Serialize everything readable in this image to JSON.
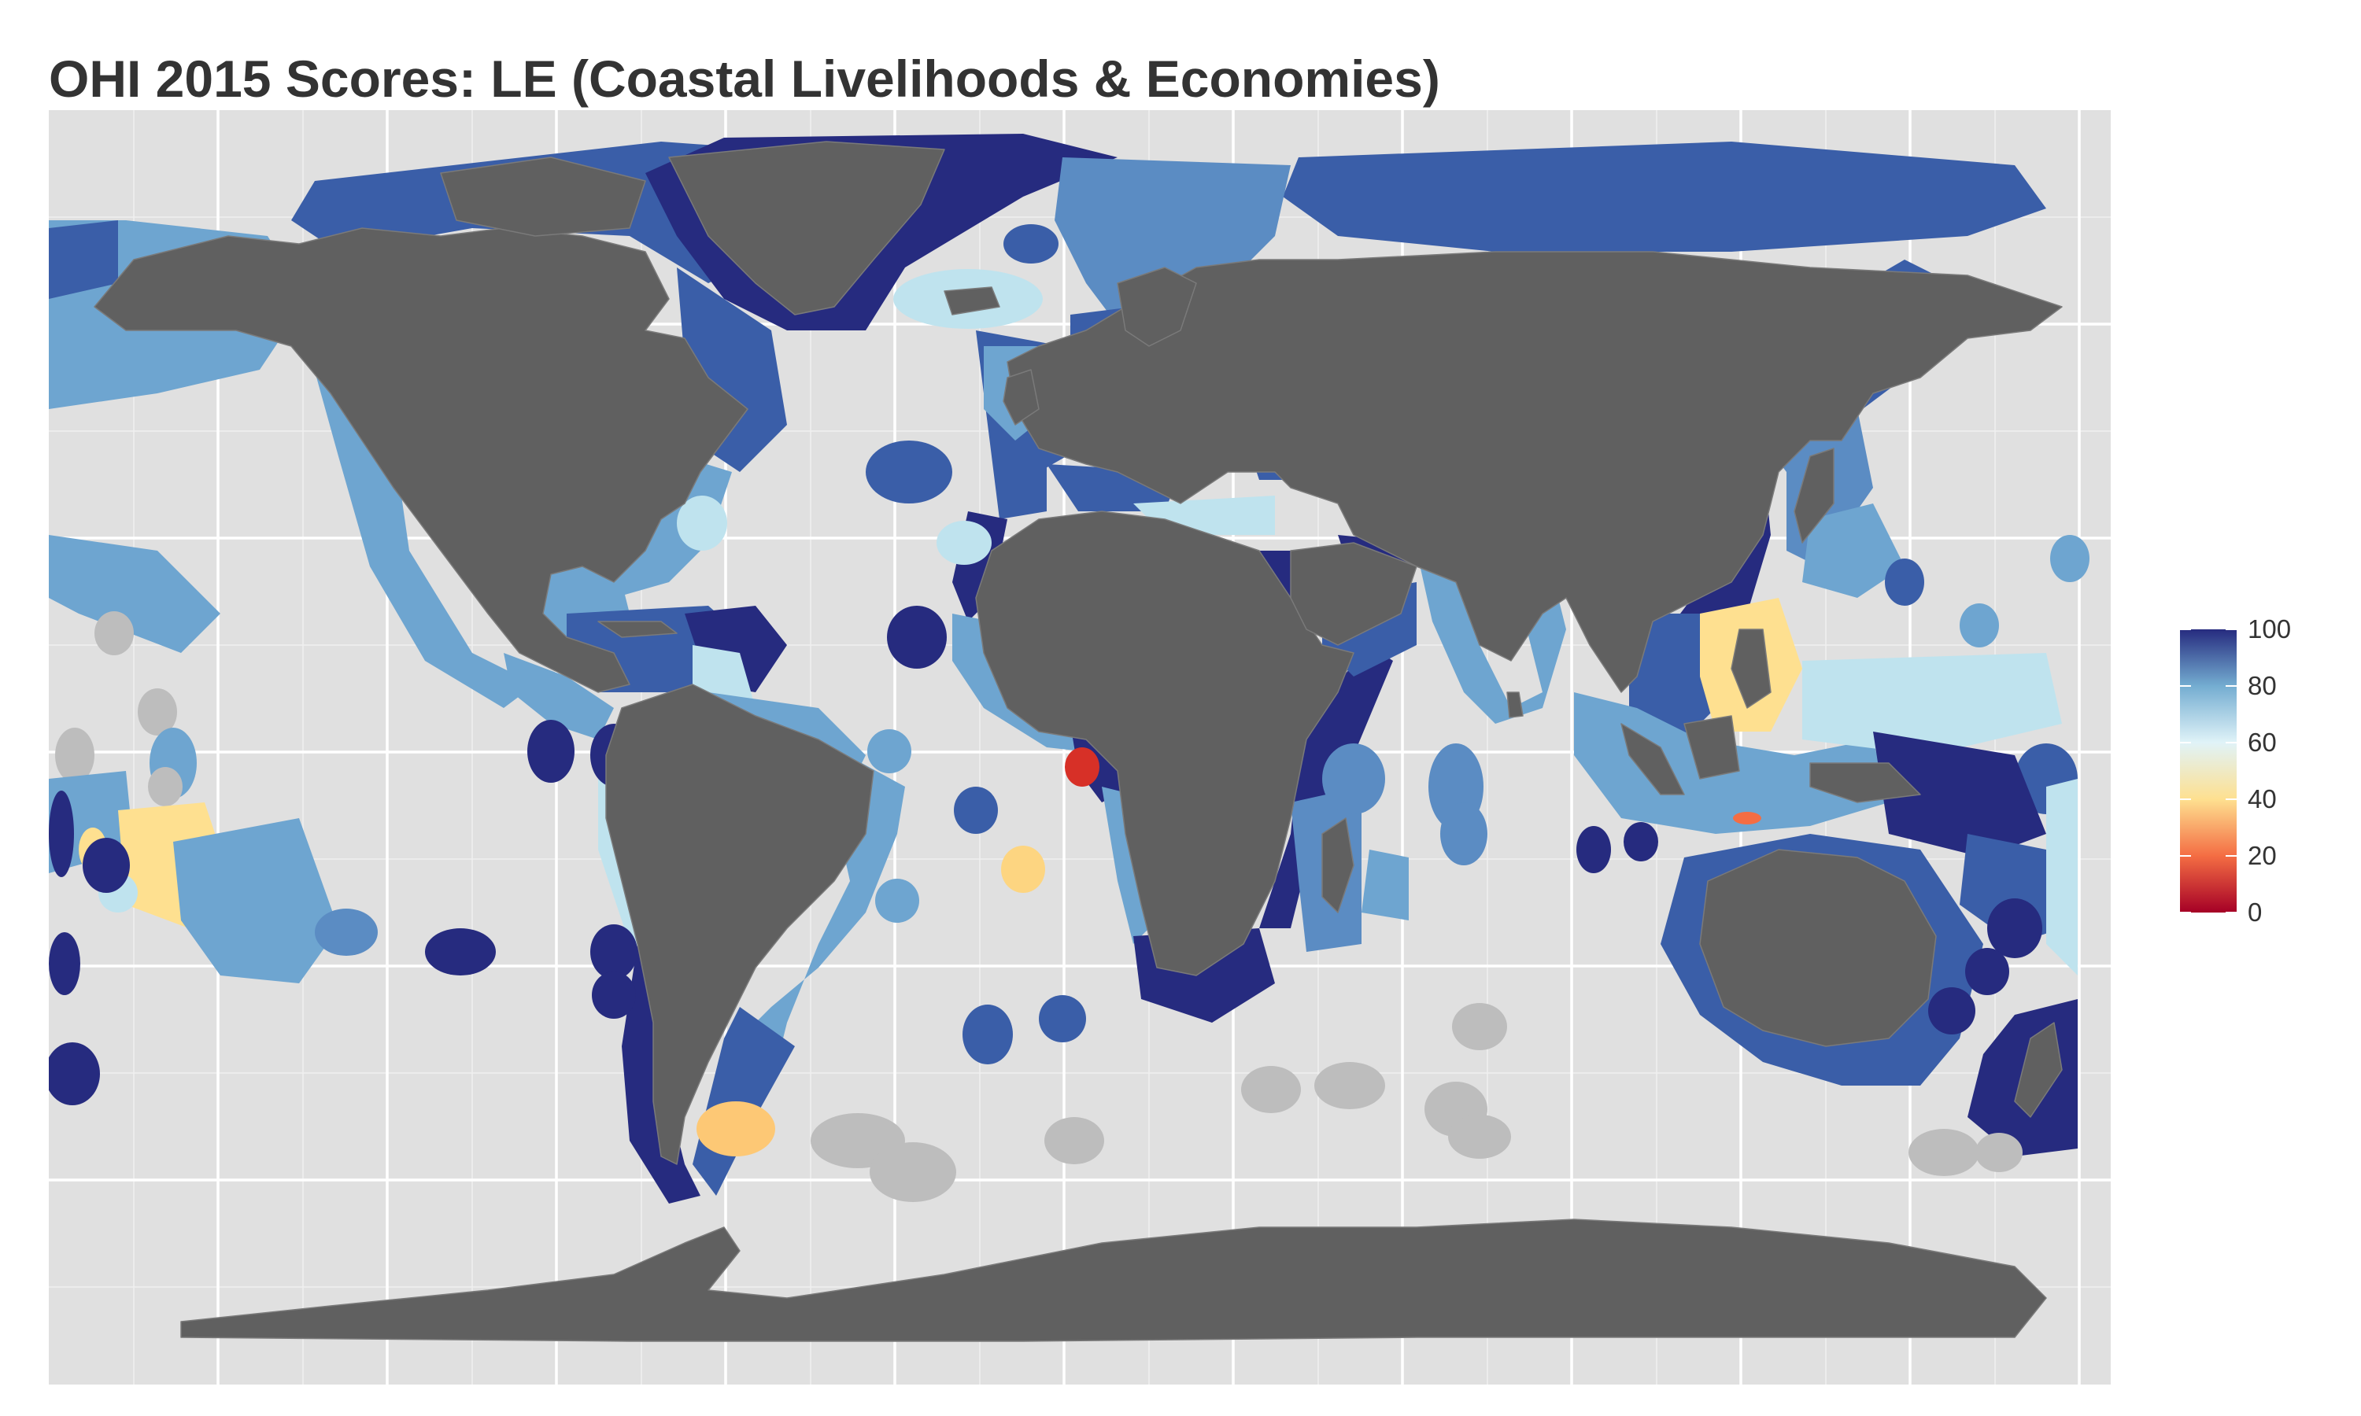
{
  "title": "OHI 2015 Scores: LE (Coastal Livelihoods & Economies)",
  "colors": {
    "panel_background": "#e0e0e0",
    "grid_line": "#ffffff",
    "land": "#606060",
    "no_data": "#bdbdbd"
  },
  "legend": {
    "position": "right",
    "ticks": [
      "100",
      "80",
      "60",
      "40",
      "20",
      "0"
    ],
    "gradient": [
      {
        "value": 0,
        "color": "#a50026"
      },
      {
        "value": 20,
        "color": "#f46d43"
      },
      {
        "value": 40,
        "color": "#fee090"
      },
      {
        "value": 60,
        "color": "#e0f3f8"
      },
      {
        "value": 80,
        "color": "#74add1"
      },
      {
        "value": 100,
        "color": "#262b7f"
      }
    ]
  },
  "chart_data": {
    "type": "choropleth map",
    "title": "OHI 2015 Scores: LE (Coastal Livelihoods & Economies)",
    "value_range": [
      0,
      100
    ],
    "grid": true,
    "legend_placement": "right",
    "missing_value_color": "#bdbdbd"
  }
}
